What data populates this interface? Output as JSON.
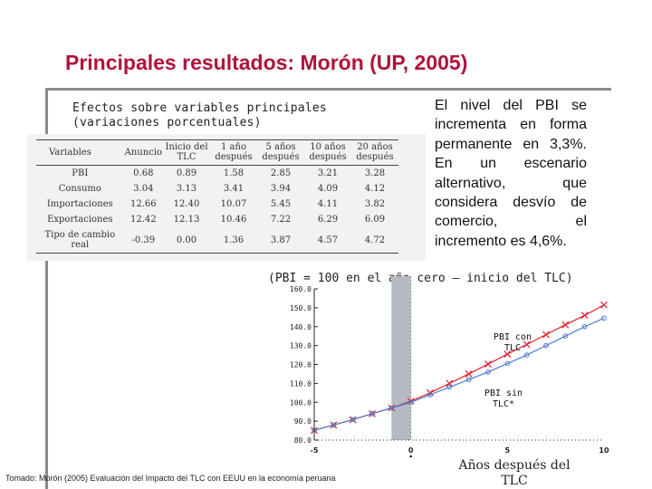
{
  "title": "Principales resultados: Morón (UP, 2005)",
  "table_heading": {
    "line1": "Efectos sobre variables principales",
    "line2": "(variaciones porcentuales)"
  },
  "table": {
    "headers": [
      "Variables",
      "Anuncio",
      "Inicio del TLC",
      "1 año después",
      "5 años después",
      "10 años después",
      "20 años después"
    ],
    "rows": [
      [
        "PBI",
        "0.68",
        "0.89",
        "1.58",
        "2.85",
        "3.21",
        "3.28"
      ],
      [
        "Consumo",
        "3.04",
        "3.13",
        "3.41",
        "3.94",
        "4.09",
        "4.12"
      ],
      [
        "Importaciones",
        "12.66",
        "12.40",
        "10.07",
        "5.45",
        "4.11",
        "3.82"
      ],
      [
        "Exportaciones",
        "12.42",
        "12.13",
        "10.46",
        "7.22",
        "6.29",
        "6.09"
      ],
      [
        "Tipo de cambio real",
        "-0.39",
        "0.00",
        "1.36",
        "3.87",
        "4.57",
        "4.72"
      ]
    ]
  },
  "paragraph": "El nivel del PBI se incrementa en forma permanente en 3,3%. En un escenario alternativo, que considera desvío de comercio, el incremento es 4,6%.",
  "chart_caption": "(PBI = 100 en el año cero – inicio del TLC)",
  "source_note": "Tomado: Morón (2005) Evaluación del Impacto del TLC con EEUU en la economía peruana",
  "x_axis_label_line1": "Años después del",
  "x_axis_label_line2": "TLC",
  "chart_data": {
    "type": "line",
    "title": "(PBI = 100 en el año cero – inicio del TLC)",
    "xlabel": "Años después del TLC",
    "ylabel": "",
    "xlim": [
      -5,
      10
    ],
    "ylim": [
      80,
      160
    ],
    "x_ticks": [
      -5,
      0,
      5,
      10
    ],
    "x_tick_labels": [
      "-5",
      "0",
      "5",
      "10"
    ],
    "y_ticks": [
      80,
      90,
      100,
      110,
      120,
      130,
      140,
      150,
      160
    ],
    "y_tick_labels": [
      "80.0",
      "90.0",
      "100.0",
      "110.0",
      "120.0",
      "130.0",
      "140.0",
      "150.0",
      "160.0"
    ],
    "shaded_band": [
      -1,
      0
    ],
    "grid": false,
    "series": [
      {
        "name": "PBI con TLC",
        "color": "#e0202a",
        "marker": "x",
        "x": [
          -5,
          -4,
          -3,
          -2,
          -1,
          0,
          1,
          2,
          3,
          4,
          5,
          6,
          7,
          8,
          9,
          10
        ],
        "y": [
          85.2,
          88.0,
          90.8,
          94.0,
          97.0,
          100.6,
          105.0,
          110.0,
          115.0,
          120.2,
          125.5,
          130.6,
          135.8,
          141.0,
          146.0,
          151.5
        ]
      },
      {
        "name": "PBI sin TLC*",
        "color": "#4b7bd0",
        "marker": "o",
        "x": [
          -5,
          -4,
          -3,
          -2,
          -1,
          0,
          1,
          2,
          3,
          4,
          5,
          6,
          7,
          8,
          9,
          10
        ],
        "y": [
          85.2,
          88.0,
          90.8,
          94.0,
          97.0,
          100.0,
          104.0,
          108.0,
          112.0,
          116.0,
          120.5,
          125.0,
          130.0,
          135.0,
          140.0,
          144.5
        ]
      }
    ],
    "annotations": [
      {
        "text_line1": "PBI con",
        "text_line2": "TLC"
      },
      {
        "text_line1": "PBI sin",
        "text_line2": "TLC*"
      }
    ]
  }
}
